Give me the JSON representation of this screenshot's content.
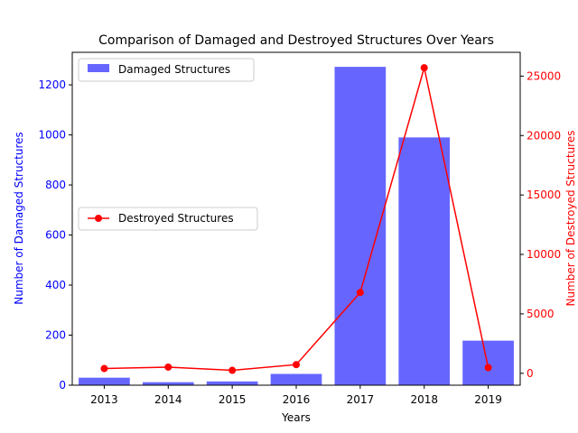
{
  "chart_data": {
    "type": "bar",
    "title": "Comparison of Damaged and Destroyed Structures Over Years",
    "xlabel": "Years",
    "categories": [
      "2013",
      "2014",
      "2015",
      "2016",
      "2017",
      "2018",
      "2019"
    ],
    "left_axis": {
      "label": "Number of Damaged Structures",
      "color": "#0000ff",
      "ylim": [
        0,
        1330
      ],
      "ticks": [
        0,
        200,
        400,
        600,
        800,
        1000,
        1200
      ]
    },
    "right_axis": {
      "label": "Number of Destroyed Structures",
      "color": "#ff0000",
      "ylim": [
        -1000,
        27000
      ],
      "ticks": [
        0,
        5000,
        10000,
        15000,
        20000,
        25000
      ]
    },
    "series": [
      {
        "name": "Damaged Structures",
        "type": "bar",
        "axis": "left",
        "color": "#6666ff",
        "values": [
          30,
          12,
          15,
          45,
          1272,
          990,
          178
        ]
      },
      {
        "name": "Destroyed Structures",
        "type": "line",
        "axis": "right",
        "color": "#ff0000",
        "values": [
          400,
          520,
          250,
          730,
          6800,
          25700,
          480
        ]
      }
    ],
    "legends": [
      {
        "series": "Damaged Structures",
        "placement": "upper-left"
      },
      {
        "series": "Destroyed Structures",
        "placement": "center-left"
      }
    ],
    "grid": false
  }
}
